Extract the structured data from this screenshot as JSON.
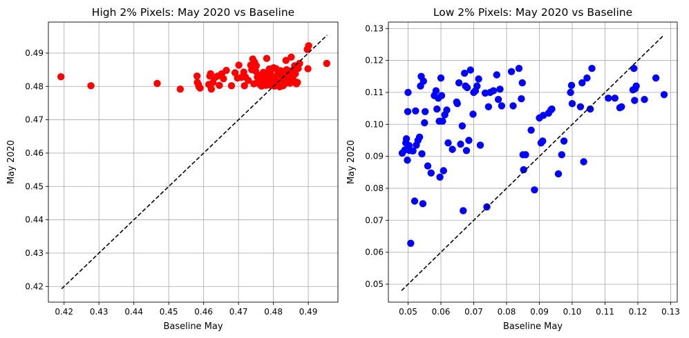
{
  "chart_data": [
    {
      "type": "scatter",
      "title": "High 2% Pixels: May 2020 vs Baseline",
      "xlabel": "Baseline May",
      "ylabel": "May 2020",
      "xlim": [
        0.4155,
        0.4985
      ],
      "ylim": [
        0.4153,
        0.4993
      ],
      "xticks": [
        "0.42",
        "0.43",
        "0.44",
        "0.45",
        "0.46",
        "0.47",
        "0.48",
        "0.49"
      ],
      "yticks": [
        "0.42",
        "0.43",
        "0.44",
        "0.45",
        "0.46",
        "0.47",
        "0.48",
        "0.49"
      ],
      "grid": true,
      "marker_color": "#ff0000",
      "reference_line": {
        "style": "dashed",
        "color": "#000000",
        "from": [
          0.4193,
          0.4193
        ],
        "to": [
          0.4954,
          0.4954
        ]
      },
      "points": [
        [
          0.4191,
          0.4829
        ],
        [
          0.4277,
          0.4802
        ],
        [
          0.4467,
          0.4809
        ],
        [
          0.4533,
          0.4792
        ],
        [
          0.4581,
          0.4831
        ],
        [
          0.4582,
          0.4812
        ],
        [
          0.4585,
          0.4806
        ],
        [
          0.4587,
          0.4799
        ],
        [
          0.459,
          0.4795
        ],
        [
          0.4615,
          0.4806
        ],
        [
          0.4618,
          0.4831
        ],
        [
          0.462,
          0.4838
        ],
        [
          0.4622,
          0.4792
        ],
        [
          0.4627,
          0.4812
        ],
        [
          0.4633,
          0.4827
        ],
        [
          0.464,
          0.4831
        ],
        [
          0.4645,
          0.4803
        ],
        [
          0.4652,
          0.4838
        ],
        [
          0.4657,
          0.4823
        ],
        [
          0.4665,
          0.4848
        ],
        [
          0.468,
          0.4802
        ],
        [
          0.469,
          0.4841
        ],
        [
          0.4697,
          0.4825
        ],
        [
          0.4701,
          0.4864
        ],
        [
          0.4708,
          0.4827
        ],
        [
          0.4715,
          0.4843
        ],
        [
          0.4717,
          0.4802
        ],
        [
          0.472,
          0.4828
        ],
        [
          0.4728,
          0.4818
        ],
        [
          0.4735,
          0.4864
        ],
        [
          0.4738,
          0.485
        ],
        [
          0.4741,
          0.4882
        ],
        [
          0.4744,
          0.4808
        ],
        [
          0.4746,
          0.4873
        ],
        [
          0.4749,
          0.4846
        ],
        [
          0.4751,
          0.4862
        ],
        [
          0.4754,
          0.4828
        ],
        [
          0.4757,
          0.4815
        ],
        [
          0.4759,
          0.4833
        ],
        [
          0.4761,
          0.4806
        ],
        [
          0.4764,
          0.481
        ],
        [
          0.4766,
          0.4801
        ],
        [
          0.4769,
          0.4822
        ],
        [
          0.4771,
          0.4842
        ],
        [
          0.4774,
          0.4832
        ],
        [
          0.4776,
          0.4812
        ],
        [
          0.4779,
          0.4803
        ],
        [
          0.4781,
          0.4884
        ],
        [
          0.4783,
          0.4835
        ],
        [
          0.4786,
          0.4822
        ],
        [
          0.4788,
          0.4852
        ],
        [
          0.4791,
          0.484
        ],
        [
          0.4793,
          0.4803
        ],
        [
          0.4795,
          0.4813
        ],
        [
          0.4798,
          0.4829
        ],
        [
          0.4801,
          0.4856
        ],
        [
          0.4803,
          0.4801
        ],
        [
          0.4806,
          0.4818
        ],
        [
          0.4808,
          0.4853
        ],
        [
          0.4811,
          0.4813
        ],
        [
          0.4813,
          0.4841
        ],
        [
          0.4816,
          0.4835
        ],
        [
          0.4818,
          0.4799
        ],
        [
          0.4821,
          0.4847
        ],
        [
          0.4823,
          0.4813
        ],
        [
          0.4826,
          0.482
        ],
        [
          0.4828,
          0.4802
        ],
        [
          0.4831,
          0.4832
        ],
        [
          0.4833,
          0.4808
        ],
        [
          0.4836,
          0.4878
        ],
        [
          0.4838,
          0.485
        ],
        [
          0.4841,
          0.4815
        ],
        [
          0.4843,
          0.4824
        ],
        [
          0.4846,
          0.4834
        ],
        [
          0.4848,
          0.481
        ],
        [
          0.4851,
          0.4888
        ],
        [
          0.4853,
          0.4847
        ],
        [
          0.4856,
          0.4822
        ],
        [
          0.4858,
          0.4818
        ],
        [
          0.4861,
          0.4862
        ],
        [
          0.4863,
          0.4838
        ],
        [
          0.4866,
          0.4808
        ],
        [
          0.4869,
          0.4812
        ],
        [
          0.4871,
          0.4854
        ],
        [
          0.4875,
          0.4869
        ],
        [
          0.4897,
          0.4911
        ],
        [
          0.4899,
          0.4853
        ],
        [
          0.4901,
          0.4922
        ],
        [
          0.4953,
          0.4869
        ]
      ]
    },
    {
      "type": "scatter",
      "title": "Low 2% Pixels: May 2020 vs Baseline",
      "xlabel": "Baseline May",
      "ylabel": "May 2020",
      "xlim": [
        0.044,
        0.132
      ],
      "ylim": [
        0.0444,
        0.132
      ],
      "xticks": [
        "0.05",
        "0.06",
        "0.07",
        "0.08",
        "0.09",
        "0.10",
        "0.11",
        "0.12",
        "0.13"
      ],
      "yticks": [
        "0.05",
        "0.06",
        "0.07",
        "0.08",
        "0.09",
        "0.10",
        "0.11",
        "0.12",
        "0.13"
      ],
      "grid": true,
      "marker_color": "#0000ff",
      "reference_line": {
        "style": "dashed",
        "color": "#000000",
        "from": [
          0.048,
          0.048
        ],
        "to": [
          0.128,
          0.128
        ]
      },
      "points": [
        [
          0.0482,
          0.091
        ],
        [
          0.049,
          0.092
        ],
        [
          0.0493,
          0.0942
        ],
        [
          0.0495,
          0.0955
        ],
        [
          0.0498,
          0.0888
        ],
        [
          0.0499,
          0.104
        ],
        [
          0.05,
          0.11
        ],
        [
          0.0503,
          0.0934
        ],
        [
          0.0505,
          0.0918
        ],
        [
          0.0508,
          0.0628
        ],
        [
          0.0515,
          0.0917
        ],
        [
          0.052,
          0.076
        ],
        [
          0.0523,
          0.1042
        ],
        [
          0.0525,
          0.0935
        ],
        [
          0.053,
          0.095
        ],
        [
          0.0535,
          0.096
        ],
        [
          0.0538,
          0.112
        ],
        [
          0.054,
          0.115
        ],
        [
          0.0542,
          0.0908
        ],
        [
          0.0545,
          0.0752
        ],
        [
          0.0547,
          0.1135
        ],
        [
          0.055,
          0.1005
        ],
        [
          0.0552,
          0.104
        ],
        [
          0.056,
          0.087
        ],
        [
          0.057,
          0.0848
        ],
        [
          0.058,
          0.109
        ],
        [
          0.0585,
          0.1105
        ],
        [
          0.0588,
          0.1048
        ],
        [
          0.0592,
          0.1082
        ],
        [
          0.0595,
          0.101
        ],
        [
          0.0597,
          0.0835
        ],
        [
          0.06,
          0.1145
        ],
        [
          0.0602,
          0.109
        ],
        [
          0.0605,
          0.101
        ],
        [
          0.0608,
          0.0855
        ],
        [
          0.0612,
          0.103
        ],
        [
          0.0618,
          0.1045
        ],
        [
          0.0622,
          0.0942
        ],
        [
          0.0635,
          0.0922
        ],
        [
          0.0648,
          0.107
        ],
        [
          0.065,
          0.1065
        ],
        [
          0.0655,
          0.113
        ],
        [
          0.066,
          0.0938
        ],
        [
          0.0665,
          0.0995
        ],
        [
          0.0668,
          0.073
        ],
        [
          0.0672,
          0.116
        ],
        [
          0.0675,
          0.112
        ],
        [
          0.0678,
          0.0918
        ],
        [
          0.068,
          0.1115
        ],
        [
          0.0685,
          0.095
        ],
        [
          0.069,
          0.117
        ],
        [
          0.0698,
          0.1032
        ],
        [
          0.07,
          0.11
        ],
        [
          0.0705,
          0.1105
        ],
        [
          0.071,
          0.112
        ],
        [
          0.0715,
          0.1142
        ],
        [
          0.072,
          0.0935
        ],
        [
          0.0735,
          0.1098
        ],
        [
          0.074,
          0.0742
        ],
        [
          0.0745,
          0.1055
        ],
        [
          0.075,
          0.11
        ],
        [
          0.076,
          0.1105
        ],
        [
          0.077,
          0.1155
        ],
        [
          0.0775,
          0.1078
        ],
        [
          0.078,
          0.111
        ],
        [
          0.0785,
          0.1058
        ],
        [
          0.0815,
          0.1165
        ],
        [
          0.082,
          0.1058
        ],
        [
          0.0838,
          0.1175
        ],
        [
          0.0845,
          0.108
        ],
        [
          0.0848,
          0.113
        ],
        [
          0.085,
          0.0905
        ],
        [
          0.0852,
          0.0858
        ],
        [
          0.0858,
          0.0905
        ],
        [
          0.0875,
          0.0982
        ],
        [
          0.0885,
          0.0795
        ],
        [
          0.09,
          0.102
        ],
        [
          0.0905,
          0.0942
        ],
        [
          0.091,
          0.0948
        ],
        [
          0.0912,
          0.1028
        ],
        [
          0.0928,
          0.1035
        ],
        [
          0.0935,
          0.1045
        ],
        [
          0.0938,
          0.1048
        ],
        [
          0.0958,
          0.0845
        ],
        [
          0.0968,
          0.0905
        ],
        [
          0.0975,
          0.0948
        ],
        [
          0.0995,
          0.11
        ],
        [
          0.0998,
          0.1122
        ],
        [
          0.1,
          0.1065
        ],
        [
          0.1025,
          0.1055
        ],
        [
          0.103,
          0.113
        ],
        [
          0.1035,
          0.0883
        ],
        [
          0.1045,
          0.1145
        ],
        [
          0.1055,
          0.1048
        ],
        [
          0.106,
          0.1175
        ],
        [
          0.111,
          0.1082
        ],
        [
          0.113,
          0.1082
        ],
        [
          0.1145,
          0.1052
        ],
        [
          0.115,
          0.1055
        ],
        [
          0.1185,
          0.1108
        ],
        [
          0.1188,
          0.1175
        ],
        [
          0.119,
          0.1075
        ],
        [
          0.1192,
          0.1112
        ],
        [
          0.1195,
          0.112
        ],
        [
          0.122,
          0.1078
        ],
        [
          0.1255,
          0.1145
        ],
        [
          0.128,
          0.1093
        ]
      ]
    }
  ]
}
